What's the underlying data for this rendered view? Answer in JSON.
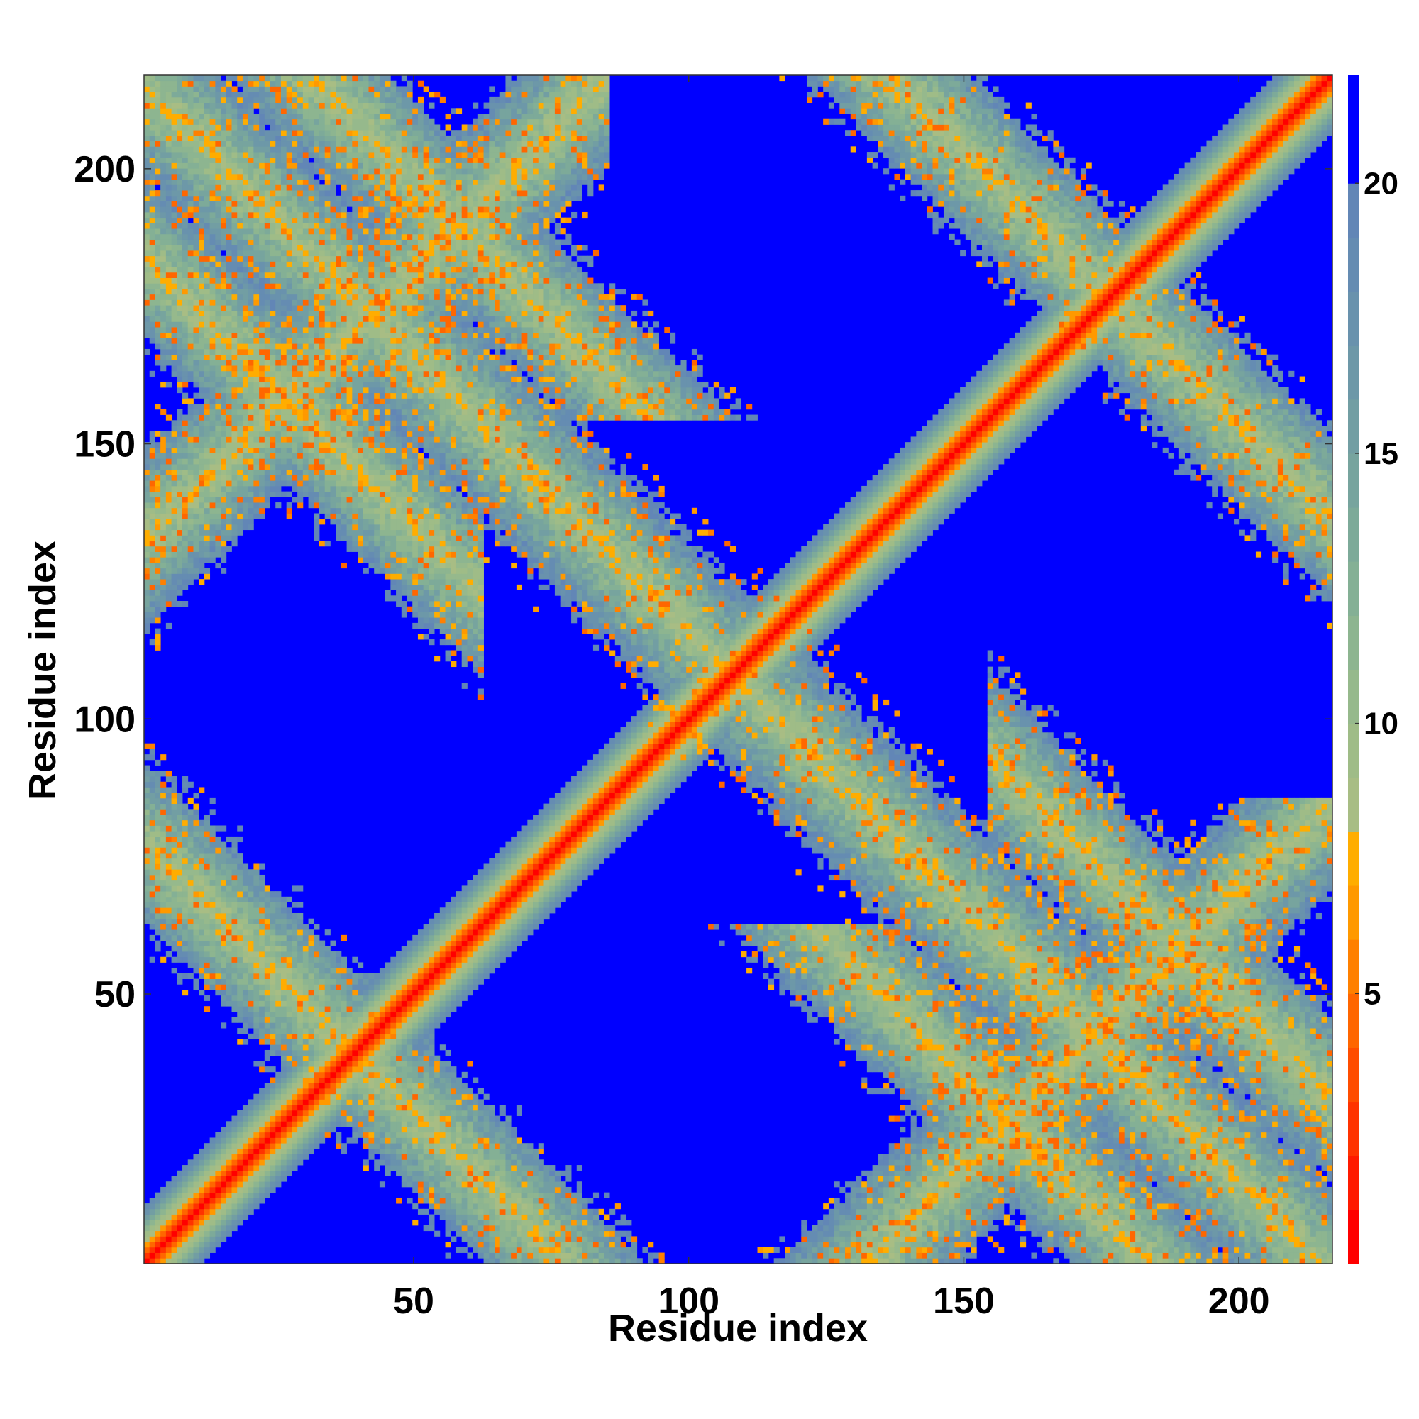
{
  "chart_data": {
    "type": "heatmap",
    "title": "",
    "xlabel": "Residue index",
    "ylabel": "Residue index",
    "n_residues": 217,
    "xlim": [
      1,
      217
    ],
    "ylim": [
      1,
      217
    ],
    "x_ticks": [
      50,
      100,
      150,
      200
    ],
    "y_ticks": [
      50,
      100,
      150,
      200
    ],
    "colorbar": {
      "range": [
        0,
        22
      ],
      "ticks": [
        5,
        10,
        15,
        20
      ],
      "levels": [
        {
          "max": 1,
          "color": "#ff0000"
        },
        {
          "max": 2,
          "color": "#ff1a00"
        },
        {
          "max": 3,
          "color": "#ff3300"
        },
        {
          "max": 4,
          "color": "#ff4d00"
        },
        {
          "max": 5,
          "color": "#ff6600"
        },
        {
          "max": 6,
          "color": "#ff8000"
        },
        {
          "max": 7,
          "color": "#ff9900"
        },
        {
          "max": 8,
          "color": "#ffad00"
        },
        {
          "max": 9,
          "color": "#a8bd84"
        },
        {
          "max": 10,
          "color": "#9fbc87"
        },
        {
          "max": 11,
          "color": "#96b98c"
        },
        {
          "max": 12,
          "color": "#8db590"
        },
        {
          "max": 13,
          "color": "#84b095"
        },
        {
          "max": 14,
          "color": "#7daa99"
        },
        {
          "max": 15,
          "color": "#77a49e"
        },
        {
          "max": 16,
          "color": "#729ea3"
        },
        {
          "max": 17,
          "color": "#6d98a8"
        },
        {
          "max": 18,
          "color": "#6992ad"
        },
        {
          "max": 19,
          "color": "#658cb2"
        },
        {
          "max": 20,
          "color": "#6286b6"
        },
        {
          "max": 22,
          "color": "#0000ff"
        }
      ]
    },
    "structure": {
      "diagonal": "self contact band along residue i = j",
      "contact_bands": [
        {
          "type": "antiparallel",
          "sum": 216,
          "from": 55,
          "to": 160,
          "width": 9
        },
        {
          "type": "antiparallel",
          "sum": 185,
          "from": 1,
          "to": 62,
          "width": 7
        },
        {
          "type": "antiparallel",
          "sum": 248,
          "from": 155,
          "to": 217,
          "width": 7
        },
        {
          "type": "parallel",
          "offset": 132,
          "from": 1,
          "to": 85,
          "width": 8
        },
        {
          "type": "antiparallel",
          "sum": 354,
          "from": 140,
          "to": 217,
          "width": 7
        },
        {
          "type": "antiparallel",
          "sum": 78,
          "from": 1,
          "to": 77,
          "width": 7
        }
      ]
    }
  }
}
